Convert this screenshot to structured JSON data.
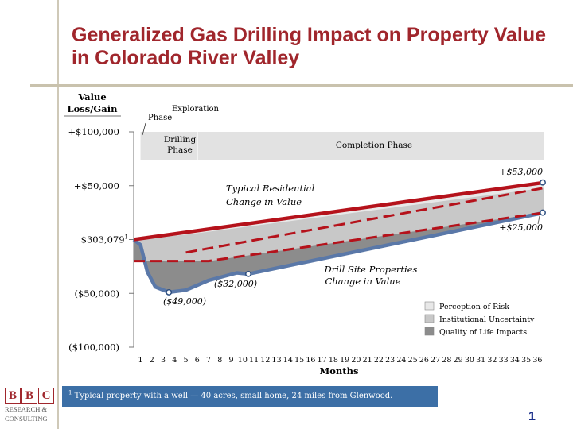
{
  "title": "Generalized Gas Drilling Impact on Property Value in Colorado River Valley",
  "footnote": {
    "marker": "1",
    "text": "Typical property with a well — 40 acres, small home, 24 miles from Glenwood."
  },
  "logo": {
    "letters": [
      "B",
      "B",
      "C"
    ],
    "line1": "RESEARCH &",
    "line2": "CONSULTING"
  },
  "page_number": "1",
  "colors": {
    "title": "#a0262c",
    "typical_line": "#b5121b",
    "drill_site_line": "#5a78a8",
    "perception": "#e8e8e8",
    "institutional": "#c8c8c8",
    "quality_of_life": "#8c8c8c",
    "phase_band": "#e2e2e2",
    "footnote_bg": "#3c6fa6"
  },
  "chart_data": {
    "type": "line",
    "ylabel": "Value Loss/Gain",
    "xlabel": "Months",
    "x": [
      1,
      2,
      3,
      4,
      5,
      6,
      7,
      8,
      9,
      10,
      11,
      12,
      13,
      14,
      15,
      16,
      17,
      18,
      19,
      20,
      21,
      22,
      23,
      24,
      25,
      26,
      27,
      28,
      29,
      30,
      31,
      32,
      33,
      34,
      35,
      36
    ],
    "xlim": [
      0.4,
      36.6
    ],
    "ylim": [
      -100000,
      100000
    ],
    "yticks": [
      {
        "value": 100000,
        "label": "+$100,000"
      },
      {
        "value": 50000,
        "label": "+$50,000"
      },
      {
        "value": 0,
        "label": "$303,079",
        "sup": "1"
      },
      {
        "value": -50000,
        "label": "($50,000)"
      },
      {
        "value": -100000,
        "label": "($100,000)"
      }
    ],
    "series": [
      {
        "name": "Typical Residential Change in Value",
        "style": "solid",
        "points": [
          [
            0.4,
            0
          ],
          [
            36.6,
            53000
          ]
        ]
      },
      {
        "name": "Drill Site Properties Change in Value",
        "style": "solid",
        "points": [
          [
            0.4,
            0
          ],
          [
            1,
            -5000
          ],
          [
            1.6,
            -30000
          ],
          [
            2.3,
            -44000
          ],
          [
            3.5,
            -49000
          ],
          [
            5,
            -47000
          ],
          [
            7,
            -38000
          ],
          [
            9.5,
            -31000
          ],
          [
            10.5,
            -32000
          ],
          [
            36.6,
            25000
          ]
        ]
      },
      {
        "name": "",
        "style": "dashed",
        "points": [
          [
            0.4,
            -20000
          ],
          [
            7,
            -20000
          ],
          [
            36.6,
            25000
          ]
        ]
      },
      {
        "name": "",
        "style": "dashed",
        "points": [
          [
            5,
            -12000
          ],
          [
            36.6,
            48000
          ]
        ]
      }
    ],
    "annotations": [
      {
        "text": "+$53,000",
        "x": 36.6,
        "y": 53000
      },
      {
        "text": "+$25,000",
        "x": 36.6,
        "y": 25000
      },
      {
        "text": "($32,000)",
        "x": 10.5,
        "y": -32000
      },
      {
        "text": "($49,000)",
        "x": 3.5,
        "y": -49000
      }
    ],
    "series_labels": [
      {
        "lines": [
          "Typical Residential",
          "Change in Value"
        ]
      },
      {
        "lines": [
          "Drill Site Properties",
          "Change in Value"
        ]
      }
    ],
    "phases": [
      {
        "name": "Exploration Phase",
        "lines": [
          "Exploration",
          "Phase"
        ],
        "from": 0.4,
        "to": 1
      },
      {
        "name": "Drilling Phase",
        "lines": [
          "Drilling",
          "Phase"
        ],
        "from": 1,
        "to": 6
      },
      {
        "name": "Completion Phase",
        "lines": [
          "Completion Phase"
        ],
        "from": 6,
        "to": 36.6
      }
    ],
    "legend": {
      "position": "bottom-right",
      "items": [
        "Perception of Risk",
        "Institutional Uncertainty",
        "Quality of Life Impacts"
      ]
    },
    "grid": false
  }
}
